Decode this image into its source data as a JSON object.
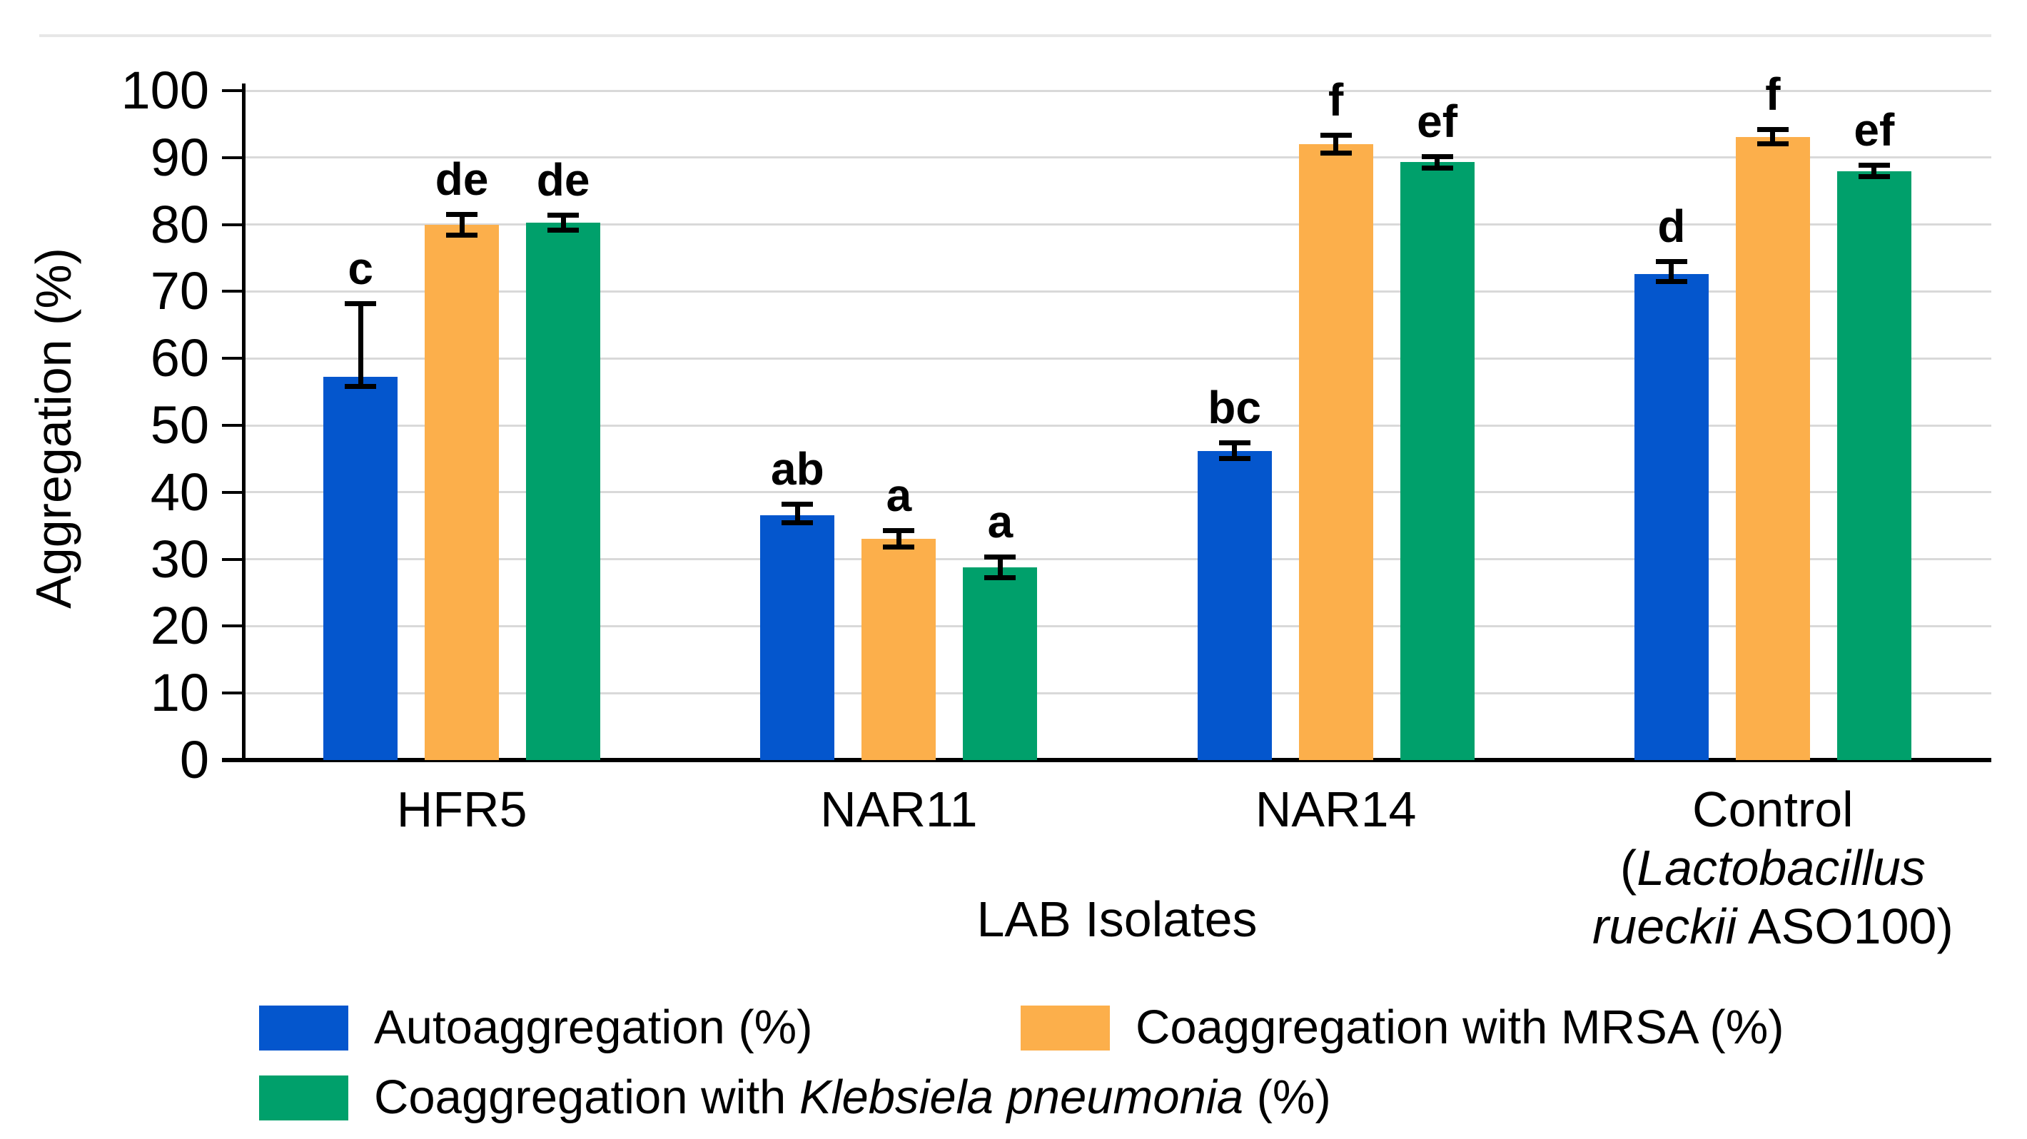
{
  "figure": {
    "background": "#ffffff",
    "top_border_color": "#e7e7e7"
  },
  "chart_data": {
    "type": "bar",
    "title": "",
    "xlabel": "LAB Isolates",
    "ylabel": "Aggregation (%)",
    "ylim": [
      0,
      100
    ],
    "yticks": [
      0,
      10,
      20,
      30,
      40,
      50,
      60,
      70,
      80,
      90,
      100
    ],
    "grid": true,
    "grid_color": "#d9d9d9",
    "axis_color": "#000000",
    "legend_position": "bottom, two rows",
    "categories": [
      "HFR5",
      "NAR11",
      "NAR14",
      "Control (Lactobacillus rueckii ASO100)"
    ],
    "category_label_lines": [
      [
        [
          {
            "t": "HFR5",
            "i": false
          }
        ]
      ],
      [
        [
          {
            "t": "NAR11",
            "i": false
          }
        ]
      ],
      [
        [
          {
            "t": "NAR14",
            "i": false
          }
        ]
      ],
      [
        [
          {
            "t": "Control",
            "i": false
          }
        ],
        [
          {
            "t": "(",
            "i": false
          },
          {
            "t": "Lactobacillus",
            "i": true
          }
        ],
        [
          {
            "t": "rueckii",
            "i": true
          },
          {
            "t": " ASO100)",
            "i": false
          }
        ]
      ]
    ],
    "series": [
      {
        "name": "Autoaggregation (%)",
        "label_segments": [
          {
            "t": "Autoaggregation (%)",
            "i": false
          }
        ],
        "color": "#0456cd",
        "values": [
          57.2,
          36.6,
          46.2,
          72.6
        ],
        "err_up": [
          11.0,
          1.7,
          1.2,
          1.9
        ],
        "err_down": [
          1.4,
          1.2,
          1.2,
          1.2
        ],
        "letters": [
          "c",
          "ab",
          "bc",
          "d"
        ]
      },
      {
        "name": "Coaggregation with MRSA (%)",
        "label_segments": [
          {
            "t": "Coaggregation with MRSA (%)",
            "i": false
          }
        ],
        "color": "#fcaf4b",
        "values": [
          80.0,
          33.1,
          92.0,
          93.1
        ],
        "err_up": [
          1.6,
          1.2,
          1.4,
          1.1
        ],
        "err_down": [
          1.6,
          1.3,
          1.4,
          1.1
        ],
        "letters": [
          "de",
          "a",
          "f",
          "f"
        ]
      },
      {
        "name": "Coaggregation with Klebsiela pneumonia (%)",
        "label_segments": [
          {
            "t": "Coaggregation with ",
            "i": false
          },
          {
            "t": "Klebsiela pneumonia",
            "i": true
          },
          {
            "t": " (%)",
            "i": false
          }
        ],
        "color": "#00a06b",
        "values": [
          80.3,
          28.8,
          89.3,
          88.0
        ],
        "err_up": [
          1.2,
          1.6,
          0.9,
          0.9
        ],
        "err_down": [
          1.2,
          1.6,
          0.9,
          0.9
        ],
        "letters": [
          "de",
          "a",
          "ef",
          "ef"
        ]
      }
    ]
  }
}
